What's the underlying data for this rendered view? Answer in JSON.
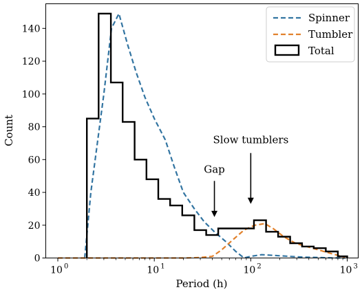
{
  "chart_data": {
    "type": "line",
    "xlabel": "Period (h)",
    "ylabel": "Count",
    "xscale": "log",
    "xlim": [
      0.75,
      1300
    ],
    "ylim": [
      0,
      155
    ],
    "grid": false,
    "legend_position": "top-right",
    "x_ticks": [
      {
        "value": 1,
        "label": "10",
        "exp": "0"
      },
      {
        "value": 10,
        "label": "10",
        "exp": "1"
      },
      {
        "value": 100,
        "label": "10",
        "exp": "2"
      },
      {
        "value": 1000,
        "label": "10",
        "exp": "3"
      }
    ],
    "y_ticks": [
      0,
      20,
      40,
      60,
      80,
      100,
      120,
      140
    ],
    "series": [
      {
        "name": "Spinner",
        "style": "dashed",
        "color": "#3274a1",
        "x": [
          1.9,
          2.2,
          3.0,
          3.6,
          4.3,
          5.3,
          6.5,
          8.0,
          10,
          13,
          16,
          20,
          26,
          33,
          42,
          55,
          70,
          85,
          100,
          130,
          180,
          250,
          350,
          500,
          700,
          950
        ],
        "y": [
          0,
          40,
          100,
          140,
          149,
          130,
          113,
          98,
          85,
          72,
          56,
          40,
          30,
          22,
          16,
          10,
          4,
          0,
          1,
          2,
          1.5,
          1,
          0.5,
          0.3,
          0.1,
          0
        ]
      },
      {
        "name": "Tumbler",
        "style": "dashed",
        "color": "#e1812c",
        "x": [
          1.0,
          10,
          20,
          30,
          40,
          50,
          65,
          85,
          110,
          140,
          170,
          220,
          290,
          380,
          500,
          700,
          950
        ],
        "y": [
          0,
          0,
          0,
          0.3,
          1,
          5,
          11,
          17,
          20,
          21,
          18,
          13,
          9,
          7,
          5,
          2.5,
          0.5
        ]
      }
    ],
    "histogram": {
      "name": "Total",
      "color": "#000000",
      "bin_edges": [
        2.0,
        2.65,
        3.55,
        4.7,
        6.25,
        8.3,
        11.0,
        14.6,
        19.5,
        26.0,
        34.5,
        46.0,
        61.0,
        81.0,
        108,
        144,
        192,
        256,
        340,
        450,
        600,
        800,
        1000
      ],
      "counts": [
        85,
        149,
        107,
        83,
        60,
        48,
        36,
        32,
        26,
        17,
        14,
        18,
        18,
        18,
        23,
        16,
        13,
        9,
        7,
        6,
        4,
        1
      ]
    },
    "annotations": [
      {
        "text": "Gap",
        "x": 42,
        "text_y": 52,
        "arrow_from_y": 47,
        "arrow_to_y": 25
      },
      {
        "text": "Slow tumblers",
        "x": 100,
        "text_y": 70,
        "arrow_from_y": 64,
        "arrow_to_y": 33
      }
    ]
  }
}
